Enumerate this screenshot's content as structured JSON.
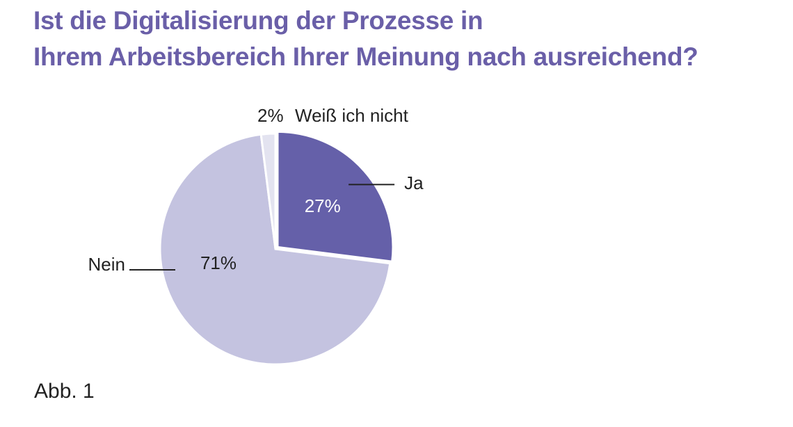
{
  "chart_data": {
    "type": "pie",
    "title_lines": [
      "Ist die Digitalisierung der Prozesse in",
      "Ihrem Arbeitsbereich Ihrer Meinung nach ausreichend?"
    ],
    "slices": [
      {
        "label": "Ja",
        "value": 27,
        "value_label": "27%",
        "color": "#6560a9"
      },
      {
        "label": "Nein",
        "value": 71,
        "value_label": "71%",
        "color": "#c4c3e0"
      },
      {
        "label": "Weiß ich nicht",
        "value": 2,
        "value_label": "2%",
        "color": "#e3e3f0"
      }
    ],
    "legend": "none"
  },
  "caption": "Abb. 1"
}
